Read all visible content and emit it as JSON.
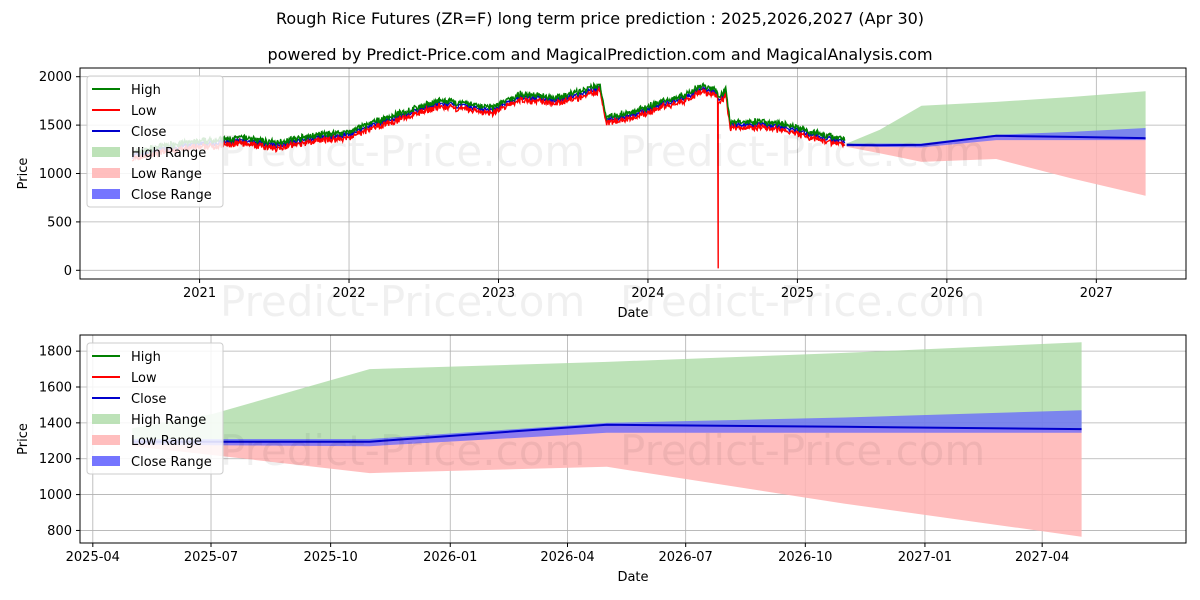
{
  "titles": {
    "main": "Rough Rice Futures (ZR=F) long term price prediction : 2025,2026,2027 (Apr 30)",
    "sub": "powered by Predict-Price.com and MagicalPrediction.com and MagicalAnalysis.com"
  },
  "watermark": "Predict-Price.com",
  "colors": {
    "high": "#008000",
    "low": "#ff0000",
    "close": "#0000cc",
    "high_range": "#a7d8a0",
    "low_range": "#ffb3b3",
    "close_range": "#6666ff"
  },
  "legend": [
    "High",
    "Low",
    "Close",
    "High Range",
    "Low Range",
    "Close Range"
  ],
  "chart_data": [
    {
      "type": "line",
      "xlabel": "Date",
      "ylabel": "Price",
      "xlim": [
        2020.2,
        2027.6
      ],
      "ylim": [
        -90,
        2090
      ],
      "xticks": [
        2021,
        2022,
        2023,
        2024,
        2025,
        2026,
        2027
      ],
      "xtick_labels": [
        "2021",
        "2022",
        "2023",
        "2024",
        "2025",
        "2026",
        "2027"
      ],
      "yticks": [
        0,
        500,
        1000,
        1500,
        2000
      ],
      "grid": true,
      "legend_position": "upper-left",
      "history_anchors": [
        [
          2020.55,
          1180
        ],
        [
          2020.8,
          1270
        ],
        [
          2021.0,
          1300
        ],
        [
          2021.3,
          1340
        ],
        [
          2021.5,
          1290
        ],
        [
          2021.8,
          1370
        ],
        [
          2022.0,
          1400
        ],
        [
          2022.2,
          1520
        ],
        [
          2022.4,
          1620
        ],
        [
          2022.6,
          1720
        ],
        [
          2022.8,
          1690
        ],
        [
          2022.95,
          1650
        ],
        [
          2023.15,
          1790
        ],
        [
          2023.4,
          1760
        ],
        [
          2023.55,
          1820
        ],
        [
          2023.68,
          1880
        ],
        [
          2023.72,
          1560
        ],
        [
          2023.9,
          1600
        ],
        [
          2024.1,
          1720
        ],
        [
          2024.25,
          1780
        ],
        [
          2024.35,
          1880
        ],
        [
          2024.45,
          1840
        ],
        [
          2024.47,
          1780
        ],
        [
          2024.5,
          1800
        ],
        [
          2024.52,
          1850
        ],
        [
          2024.55,
          1500
        ],
        [
          2024.7,
          1510
        ],
        [
          2024.9,
          1480
        ],
        [
          2025.05,
          1420
        ],
        [
          2025.2,
          1360
        ],
        [
          2025.32,
          1330
        ]
      ],
      "low_spike": {
        "x": 2024.47,
        "y": 20
      },
      "forecast": {
        "x": [
          2025.33,
          2025.55,
          2025.83,
          2026.33,
          2026.83,
          2027.33
        ],
        "high": [
          1310,
          1450,
          1700,
          1740,
          1790,
          1850
        ],
        "low": [
          1275,
          1210,
          1120,
          1150,
          950,
          770
        ],
        "close": [
          1295,
          1292,
          1295,
          1390,
          1378,
          1365
        ],
        "close_upper": [
          1310,
          1310,
          1310,
          1400,
          1430,
          1470
        ],
        "close_lower": [
          1280,
          1275,
          1270,
          1345,
          1345,
          1345
        ]
      }
    },
    {
      "type": "line",
      "xlabel": "Date",
      "ylabel": "Price",
      "xlim": [
        2025.22,
        2027.55
      ],
      "ylim": [
        730,
        1890
      ],
      "xticks": [
        2025.247,
        2025.496,
        2025.748,
        2026.0,
        2026.247,
        2026.496,
        2026.748,
        2027.0,
        2027.247
      ],
      "xtick_labels": [
        "2025-04",
        "2025-07",
        "2025-10",
        "2026-01",
        "2026-04",
        "2026-07",
        "2026-10",
        "2027-01",
        "2027-04"
      ],
      "yticks": [
        800,
        1000,
        1200,
        1400,
        1600,
        1800
      ],
      "grid": true,
      "legend_position": "upper-left",
      "forecast": {
        "x": [
          2025.33,
          2025.5,
          2025.83,
          2026.33,
          2026.83,
          2027.33
        ],
        "high": [
          1370,
          1450,
          1700,
          1740,
          1790,
          1850
        ],
        "low": [
          1270,
          1220,
          1120,
          1155,
          950,
          765
        ],
        "close": [
          1295,
          1295,
          1295,
          1390,
          1378,
          1365
        ],
        "close_upper": [
          1310,
          1310,
          1310,
          1400,
          1430,
          1470
        ],
        "close_lower": [
          1280,
          1275,
          1270,
          1345,
          1345,
          1345
        ]
      }
    }
  ]
}
